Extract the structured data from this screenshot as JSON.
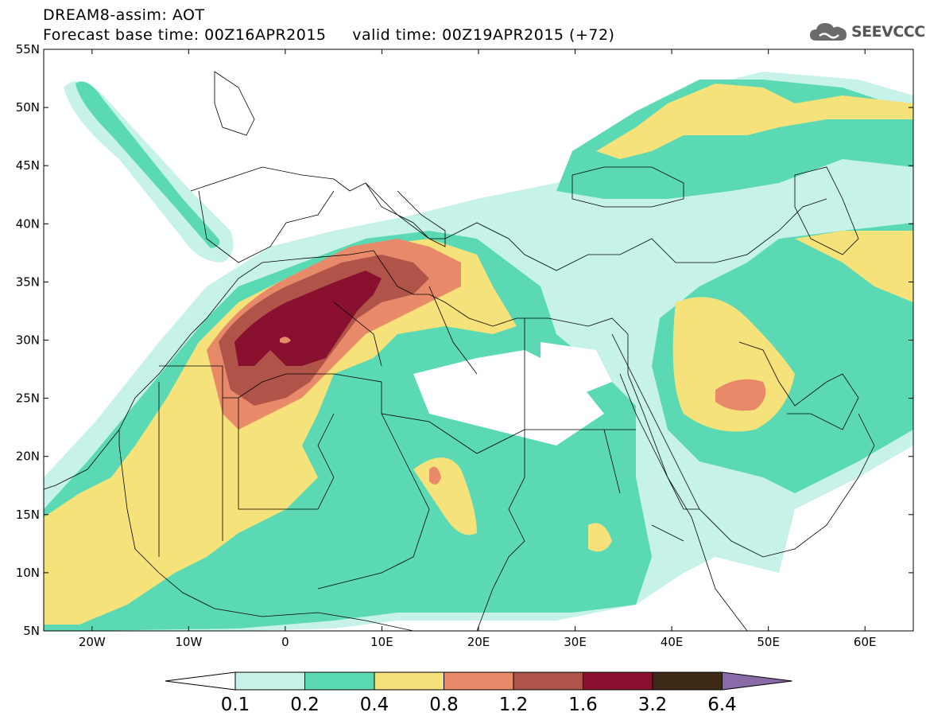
{
  "header": {
    "line1": "DREAM8-assim: AOT",
    "line2": "Forecast base time: 00Z16APR2015     valid time: 00Z19APR2015 (+72)"
  },
  "logo": {
    "text": "SEEVCCC",
    "icon": "cloud-icon"
  },
  "map": {
    "lat_labels": [
      "55N",
      "50N",
      "45N",
      "40N",
      "35N",
      "30N",
      "25N",
      "20N",
      "15N",
      "10N",
      "5N"
    ],
    "lon_labels": [
      "20W",
      "10W",
      "0",
      "10E",
      "20E",
      "30E",
      "40E",
      "50E",
      "60E"
    ],
    "extent": {
      "lon": [
        -25,
        65
      ],
      "lat": [
        5,
        55
      ]
    },
    "colors": {
      "c01": "#c6f2ea",
      "c02": "#5ad9b4",
      "c04": "#f5e27a",
      "c08": "#e8896a",
      "c12": "#b0544a",
      "c16": "#8a1030",
      "c32": "#3e2a16",
      "c64": "#8a6aa8"
    }
  },
  "colorbar": {
    "labels": [
      "0.1",
      "0.2",
      "0.4",
      "0.8",
      "1.2",
      "1.6",
      "3.2",
      "6.4"
    ],
    "colors": [
      "#c6f2ea",
      "#5ad9b4",
      "#f5e27a",
      "#e8896a",
      "#b0544a",
      "#8a1030",
      "#3e2a16"
    ],
    "over_color": "#8a6aa8",
    "under_color": "#ffffff"
  }
}
